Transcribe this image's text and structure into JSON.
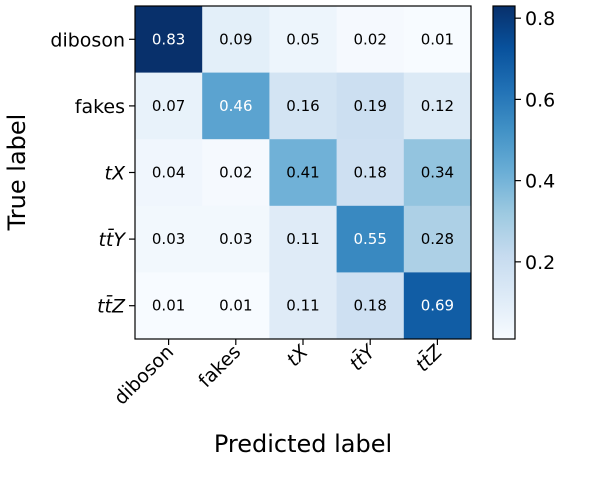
{
  "chart_data": {
    "type": "heatmap",
    "xlabel": "Predicted label",
    "ylabel": "True label",
    "rows": [
      {
        "label": "diboson",
        "italic": false
      },
      {
        "label": "fakes",
        "italic": false
      },
      {
        "label": "tX",
        "italic": true
      },
      {
        "label": "tt̄Y",
        "italic": true
      },
      {
        "label": "tt̄Z",
        "italic": true
      }
    ],
    "columns": [
      {
        "label": "diboson",
        "italic": false
      },
      {
        "label": "fakes",
        "italic": false
      },
      {
        "label": "tX",
        "italic": true
      },
      {
        "label": "tt̄Y",
        "italic": true
      },
      {
        "label": "tt̄Z",
        "italic": true
      }
    ],
    "values": [
      [
        0.83,
        0.09,
        0.05,
        0.02,
        0.01
      ],
      [
        0.07,
        0.46,
        0.16,
        0.19,
        0.12
      ],
      [
        0.04,
        0.02,
        0.41,
        0.18,
        0.34
      ],
      [
        0.03,
        0.03,
        0.11,
        0.55,
        0.28
      ],
      [
        0.01,
        0.01,
        0.11,
        0.18,
        0.69
      ]
    ],
    "color_scale": {
      "name": "Blues",
      "min": 0.01,
      "max": 0.83,
      "ticks": [
        0.2,
        0.4,
        0.6,
        0.8
      ],
      "tick_labels": [
        "0.2",
        "0.4",
        "0.6",
        "0.8"
      ],
      "low_color": "#f7fbff",
      "high_color": "#08306b"
    }
  }
}
